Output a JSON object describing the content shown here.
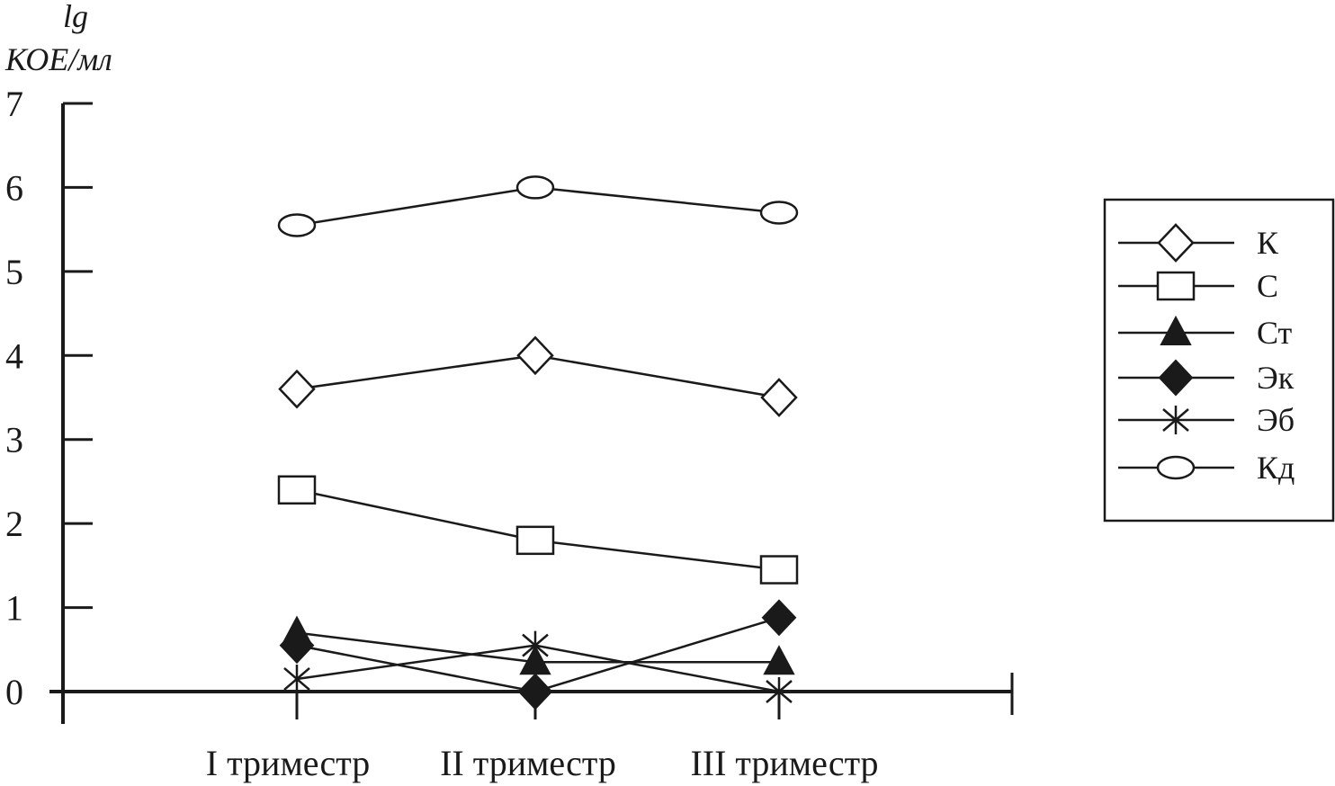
{
  "chart_data": {
    "type": "line",
    "ylabel_line1": "lg",
    "ylabel_line2": "КОЕ/мл",
    "categories": [
      "I триместр",
      "II триместр",
      "III триместр"
    ],
    "yticks": [
      "0",
      "1",
      "2",
      "3",
      "4",
      "5",
      "6",
      "7"
    ],
    "ylim": [
      0,
      7
    ],
    "grid": false,
    "legend_position": "right",
    "series": [
      {
        "name": "К",
        "marker": "diamond-open",
        "values": [
          3.6,
          4.0,
          3.5
        ]
      },
      {
        "name": "С",
        "marker": "square-open",
        "values": [
          2.4,
          1.8,
          1.45
        ]
      },
      {
        "name": "Ст",
        "marker": "triangle-filled",
        "values": [
          0.7,
          0.35,
          0.35
        ]
      },
      {
        "name": "Эк",
        "marker": "diamond-filled",
        "values": [
          0.55,
          0.0,
          0.88
        ]
      },
      {
        "name": "Эб",
        "marker": "asterisk",
        "values": [
          0.15,
          0.55,
          0.0
        ]
      },
      {
        "name": "Кд",
        "marker": "circle-open",
        "values": [
          5.55,
          6.0,
          5.7
        ]
      }
    ]
  }
}
